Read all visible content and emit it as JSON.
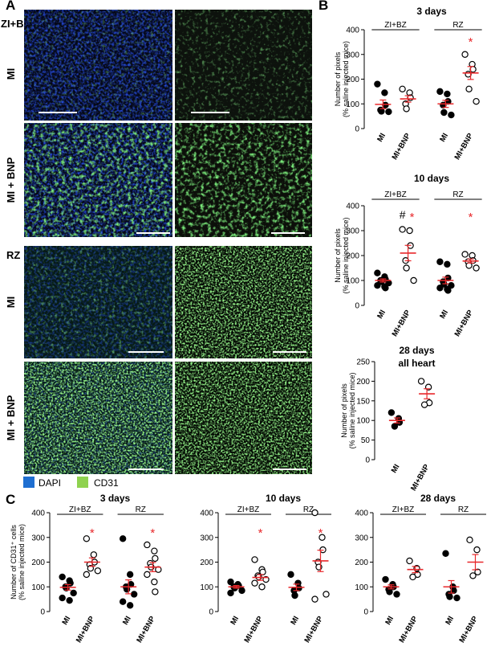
{
  "panels": {
    "A": "A",
    "B": "B",
    "C": "C"
  },
  "micrographs": {
    "section_zibz": "ZI+BZ",
    "section_rz": "RZ",
    "row_mi": "MI",
    "row_mibnp": "MI + BNP",
    "legend": [
      {
        "label": "DAPI",
        "color": "#1f6fd1"
      },
      {
        "label": "CD31",
        "color": "#8fd24f"
      }
    ]
  },
  "colors": {
    "mean_bar": "#e8282b",
    "significance_star": "#e8282b",
    "point_MI": "#000000",
    "point_MIBNP": "#ffffff"
  },
  "chart_data": [
    {
      "id": "B-3days",
      "type": "scatter",
      "title": "3 days",
      "ylabel": "Number of pixels\n(% saline injected mice)",
      "ylim": [
        0,
        400
      ],
      "yticks": [
        0,
        100,
        200,
        300,
        400
      ],
      "groups": [
        {
          "name": "ZI+BZ",
          "categories": [
            "MI",
            "MI+BNP"
          ],
          "series": [
            {
              "name": "MI",
              "values": [
                180,
                145,
                95,
                75,
                70,
                68
              ],
              "mean": 98
            },
            {
              "name": "MI+BNP",
              "values": [
                160,
                145,
                125,
                100,
                80
              ],
              "mean": 120
            }
          ],
          "marks": [
            {
              "category": "MI+BNP",
              "symbol": ""
            }
          ]
        },
        {
          "name": "RZ",
          "categories": [
            "MI",
            "MI+BNP"
          ],
          "series": [
            {
              "name": "MI",
              "values": [
                150,
                140,
                110,
                95,
                65,
                55
              ],
              "mean": 100
            },
            {
              "name": "MI+BNP",
              "values": [
                300,
                260,
                240,
                220,
                160,
                110
              ],
              "mean": 225
            }
          ],
          "marks": [
            {
              "category": "MI+BNP",
              "symbol": "*"
            }
          ]
        }
      ]
    },
    {
      "id": "B-10days",
      "type": "scatter",
      "title": "10 days",
      "ylabel": "Number of pixels\n(% saline injected mice)",
      "ylim": [
        0,
        400
      ],
      "yticks": [
        0,
        100,
        200,
        300,
        400
      ],
      "groups": [
        {
          "name": "ZI+BZ",
          "categories": [
            "MI",
            "MI+BNP"
          ],
          "series": [
            {
              "name": "MI",
              "values": [
                130,
                115,
                105,
                100,
                95,
                90,
                80,
                75,
                70
              ],
              "mean": 100
            },
            {
              "name": "MI+BNP",
              "values": [
                305,
                300,
                240,
                180,
                150,
                100
              ],
              "mean": 210
            }
          ],
          "marks": [
            {
              "category": "MI+BNP",
              "symbol": "#*"
            }
          ]
        },
        {
          "name": "RZ",
          "categories": [
            "MI",
            "MI+BNP"
          ],
          "series": [
            {
              "name": "MI",
              "values": [
                175,
                165,
                110,
                95,
                85,
                80,
                70,
                65,
                60
              ],
              "mean": 100
            },
            {
              "name": "MI+BNP",
              "values": [
                205,
                200,
                180,
                175,
                160,
                150
              ],
              "mean": 178
            }
          ],
          "marks": [
            {
              "category": "MI+BNP",
              "symbol": "*"
            }
          ]
        }
      ]
    },
    {
      "id": "B-28days",
      "type": "scatter",
      "title": "28 days",
      "subtitle": "all heart",
      "ylabel": "Number of pixels\n(% saline injected mice)",
      "ylim": [
        0,
        250
      ],
      "yticks": [
        0,
        50,
        100,
        150,
        200,
        250
      ],
      "groups": [
        {
          "name": "",
          "categories": [
            "MI",
            "MI+BNP"
          ],
          "series": [
            {
              "name": "MI",
              "values": [
                120,
                105,
                95,
                85
              ],
              "mean": 100
            },
            {
              "name": "MI+BNP",
              "values": [
                200,
                185,
                145,
                140
              ],
              "mean": 168
            }
          ],
          "marks": []
        }
      ]
    },
    {
      "id": "C-3days",
      "type": "scatter",
      "title": "3 days",
      "ylabel": "Number of CD31⁺ cells\n(% saline injected mice)",
      "ylim": [
        0,
        400
      ],
      "yticks": [
        0,
        100,
        200,
        300,
        400
      ],
      "groups": [
        {
          "name": "ZI+BZ",
          "categories": [
            "MI",
            "MI+BNP"
          ],
          "series": [
            {
              "name": "MI",
              "values": [
                140,
                125,
                115,
                100,
                95,
                75,
                55,
                45
              ],
              "mean": 98
            },
            {
              "name": "MI+BNP",
              "values": [
                295,
                230,
                200,
                190,
                175,
                165,
                150
              ],
              "mean": 200
            }
          ],
          "marks": [
            {
              "category": "MI+BNP",
              "symbol": "*"
            }
          ]
        },
        {
          "name": "RZ",
          "categories": [
            "MI",
            "MI+BNP"
          ],
          "series": [
            {
              "name": "MI",
              "values": [
                295,
                150,
                110,
                100,
                90,
                70,
                40,
                25
              ],
              "mean": 100
            },
            {
              "name": "MI+BNP",
              "values": [
                270,
                245,
                215,
                195,
                180,
                170,
                150,
                120,
                80
              ],
              "mean": 180
            }
          ],
          "marks": [
            {
              "category": "MI+BNP",
              "symbol": "*"
            }
          ]
        }
      ]
    },
    {
      "id": "C-10days",
      "type": "scatter",
      "title": "10 days",
      "ylabel": "",
      "ylim": [
        0,
        400
      ],
      "yticks": [
        0,
        100,
        200,
        300,
        400
      ],
      "groups": [
        {
          "name": "ZI+BZ",
          "categories": [
            "MI",
            "MI+BNP"
          ],
          "series": [
            {
              "name": "MI",
              "values": [
                120,
                110,
                105,
                100,
                95,
                85,
                75
              ],
              "mean": 100
            },
            {
              "name": "MI+BNP",
              "values": [
                210,
                170,
                160,
                145,
                140,
                130,
                115,
                100
              ],
              "mean": 138
            }
          ],
          "marks": [
            {
              "category": "MI+BNP",
              "symbol": "*"
            }
          ]
        },
        {
          "name": "RZ",
          "categories": [
            "MI",
            "MI+BNP"
          ],
          "series": [
            {
              "name": "MI",
              "values": [
                150,
                115,
                95,
                85,
                65
              ],
              "mean": 98
            },
            {
              "name": "MI+BNP",
              "values": [
                400,
                300,
                250,
                200,
                180,
                70,
                50
              ],
              "mean": 205
            }
          ],
          "marks": [
            {
              "category": "MI+BNP",
              "symbol": "*"
            }
          ]
        }
      ]
    },
    {
      "id": "C-28days",
      "type": "scatter",
      "title": "28 days",
      "ylabel": "",
      "ylim": [
        0,
        400
      ],
      "yticks": [
        0,
        100,
        200,
        300,
        400
      ],
      "groups": [
        {
          "name": "ZI+BZ",
          "categories": [
            "MI",
            "MI+BNP"
          ],
          "series": [
            {
              "name": "MI",
              "values": [
                130,
                110,
                100,
                90,
                80,
                70
              ],
              "mean": 100
            },
            {
              "name": "MI+BNP",
              "values": [
                205,
                175,
                150,
                140
              ],
              "mean": 170
            }
          ],
          "marks": []
        },
        {
          "name": "RZ",
          "categories": [
            "MI",
            "MI+BNP"
          ],
          "series": [
            {
              "name": "MI",
              "values": [
                235,
                100,
                85,
                70,
                60,
                55
              ],
              "mean": 100
            },
            {
              "name": "MI+BNP",
              "values": [
                290,
                250,
                160,
                145
              ],
              "mean": 200
            }
          ],
          "marks": []
        }
      ]
    }
  ]
}
